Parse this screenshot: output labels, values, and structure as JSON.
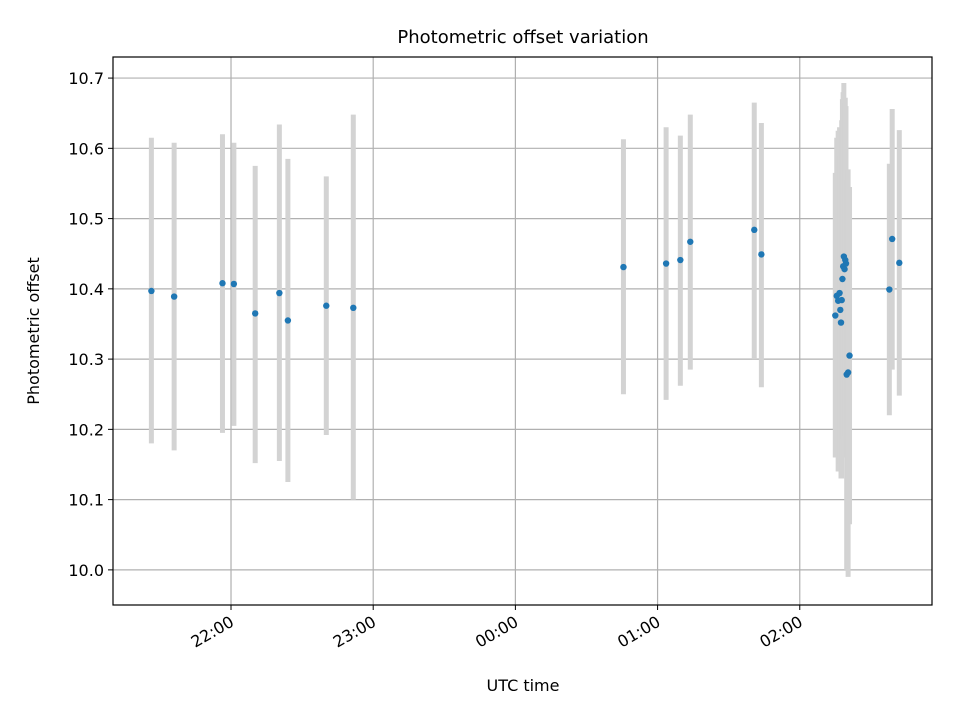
{
  "chart_data": {
    "type": "scatter",
    "title": "Photometric offset variation",
    "xlabel": "UTC time",
    "ylabel": "Photometric offset",
    "x_unit": "hours_since_midnight",
    "xlim": [
      -2.83,
      2.93
    ],
    "ylim": [
      9.95,
      10.73
    ],
    "grid": true,
    "x_ticks": [
      {
        "value": -2.0,
        "label": "22:00"
      },
      {
        "value": -1.0,
        "label": "23:00"
      },
      {
        "value": 0.0,
        "label": "00:00"
      },
      {
        "value": 1.0,
        "label": "01:00"
      },
      {
        "value": 2.0,
        "label": "02:00"
      }
    ],
    "y_ticks": [
      {
        "value": 10.0,
        "label": "10.0"
      },
      {
        "value": 10.1,
        "label": "10.1"
      },
      {
        "value": 10.2,
        "label": "10.2"
      },
      {
        "value": 10.3,
        "label": "10.3"
      },
      {
        "value": 10.4,
        "label": "10.4"
      },
      {
        "value": 10.5,
        "label": "10.5"
      },
      {
        "value": 10.6,
        "label": "10.6"
      },
      {
        "value": 10.7,
        "label": "10.7"
      }
    ],
    "points": [
      {
        "x": -2.56,
        "y": 10.397,
        "lo": 10.18,
        "hi": 10.615
      },
      {
        "x": -2.4,
        "y": 10.389,
        "lo": 10.17,
        "hi": 10.608
      },
      {
        "x": -2.06,
        "y": 10.408,
        "lo": 10.195,
        "hi": 10.62
      },
      {
        "x": -1.98,
        "y": 10.407,
        "lo": 10.205,
        "hi": 10.608
      },
      {
        "x": -1.83,
        "y": 10.365,
        "lo": 10.152,
        "hi": 10.575
      },
      {
        "x": -1.66,
        "y": 10.394,
        "lo": 10.155,
        "hi": 10.634
      },
      {
        "x": -1.6,
        "y": 10.355,
        "lo": 10.125,
        "hi": 10.585
      },
      {
        "x": -1.33,
        "y": 10.376,
        "lo": 10.192,
        "hi": 10.56
      },
      {
        "x": -1.14,
        "y": 10.373,
        "lo": 10.1,
        "hi": 10.648
      },
      {
        "x": 0.76,
        "y": 10.431,
        "lo": 10.25,
        "hi": 10.613
      },
      {
        "x": 1.06,
        "y": 10.436,
        "lo": 10.242,
        "hi": 10.63
      },
      {
        "x": 1.16,
        "y": 10.441,
        "lo": 10.262,
        "hi": 10.618
      },
      {
        "x": 1.23,
        "y": 10.467,
        "lo": 10.285,
        "hi": 10.648
      },
      {
        "x": 1.68,
        "y": 10.484,
        "lo": 10.3,
        "hi": 10.665
      },
      {
        "x": 1.73,
        "y": 10.449,
        "lo": 10.26,
        "hi": 10.636
      },
      {
        "x": 2.25,
        "y": 10.362,
        "lo": 10.16,
        "hi": 10.565
      },
      {
        "x": 2.26,
        "y": 10.39,
        "lo": 10.165,
        "hi": 10.615
      },
      {
        "x": 2.27,
        "y": 10.383,
        "lo": 10.14,
        "hi": 10.625
      },
      {
        "x": 2.28,
        "y": 10.394,
        "lo": 10.16,
        "hi": 10.63
      },
      {
        "x": 2.285,
        "y": 10.37,
        "lo": 10.15,
        "hi": 10.59
      },
      {
        "x": 2.29,
        "y": 10.352,
        "lo": 10.13,
        "hi": 10.575
      },
      {
        "x": 2.295,
        "y": 10.384,
        "lo": 10.13,
        "hi": 10.64
      },
      {
        "x": 2.3,
        "y": 10.414,
        "lo": 10.16,
        "hi": 10.67
      },
      {
        "x": 2.305,
        "y": 10.432,
        "lo": 10.185,
        "hi": 10.68
      },
      {
        "x": 2.31,
        "y": 10.446,
        "lo": 10.2,
        "hi": 10.693
      },
      {
        "x": 2.315,
        "y": 10.428,
        "lo": 10.19,
        "hi": 10.665
      },
      {
        "x": 2.32,
        "y": 10.441,
        "lo": 10.21,
        "hi": 10.672
      },
      {
        "x": 2.325,
        "y": 10.436,
        "lo": 10.215,
        "hi": 10.66
      },
      {
        "x": 2.33,
        "y": 10.278,
        "lo": 10.0,
        "hi": 10.556
      },
      {
        "x": 2.34,
        "y": 10.281,
        "lo": 9.99,
        "hi": 10.57
      },
      {
        "x": 2.35,
        "y": 10.305,
        "lo": 10.065,
        "hi": 10.545
      },
      {
        "x": 2.63,
        "y": 10.399,
        "lo": 10.22,
        "hi": 10.578
      },
      {
        "x": 2.65,
        "y": 10.471,
        "lo": 10.285,
        "hi": 10.656
      },
      {
        "x": 2.7,
        "y": 10.437,
        "lo": 10.248,
        "hi": 10.626
      }
    ],
    "marker_color": "#1f77b4",
    "errorbar_color": "#d3d3d3"
  }
}
